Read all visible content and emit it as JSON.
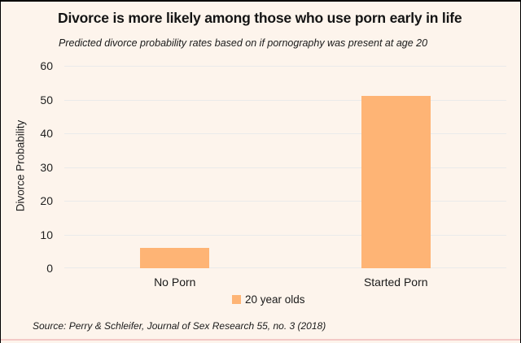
{
  "colors": {
    "background": "#fdf4ec",
    "bar": "#feb475",
    "gridline": "#eaeaea",
    "accent_line": "#f4c8c6",
    "border": "#000000",
    "text": "#141414"
  },
  "chart_data": {
    "type": "bar",
    "title": "Divorce is more likely among those who use porn early in life",
    "subtitle": "Predicted divorce probability rates based on if pornography was present at age 20",
    "categories": [
      "No Porn",
      "Started Porn"
    ],
    "series": [
      {
        "name": "20 year olds",
        "values": [
          6,
          51
        ]
      }
    ],
    "xlabel": "",
    "ylabel": "Divorce Probability",
    "ylim": [
      0,
      60
    ],
    "yticks": [
      0,
      10,
      20,
      30,
      40,
      50,
      60
    ],
    "grid": true,
    "legend_position": "bottom-center",
    "source": "Source: Perry & Schleifer, Journal of Sex Research 55, no. 3 (2018)"
  }
}
